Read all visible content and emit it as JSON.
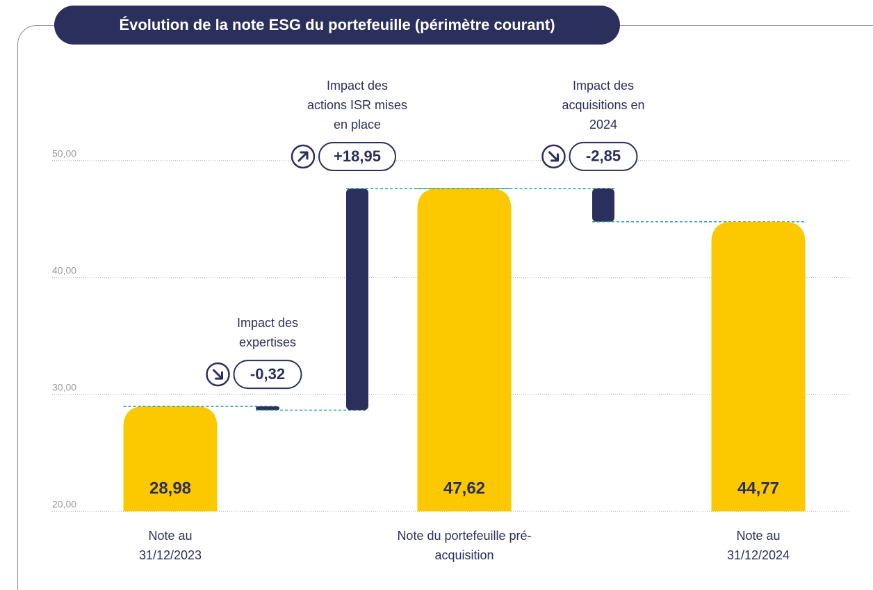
{
  "chart_data": {
    "type": "waterfall",
    "title": "Évolution de la note ESG du portefeuille (périmètre courant)",
    "categories": [
      "Note au 31/12/2023",
      "Impact des expertises",
      "Impact des actions ISR mises en place",
      "Note du portefeuille pré-acquisition",
      "Impact des acquisitions en 2024",
      "Note au 31/12/2024"
    ],
    "values": [
      28.98,
      -0.32,
      18.95,
      47.62,
      -2.85,
      44.77
    ],
    "value_labels": [
      "28,98",
      "-0,32",
      "+18,95",
      "47,62",
      "-2,85",
      "44,77"
    ],
    "measures": [
      "absolute",
      "relative",
      "relative",
      "absolute",
      "relative",
      "absolute"
    ],
    "total_color": "#fcc800",
    "delta_color": "#2b2f5b",
    "ylim": [
      20,
      56
    ],
    "yticks": [
      {
        "value": 20,
        "label": "20,00"
      },
      {
        "value": 30,
        "label": "30,00"
      },
      {
        "value": 40,
        "label": "40,00"
      },
      {
        "value": 50,
        "label": "50,00"
      }
    ],
    "grid": true
  }
}
